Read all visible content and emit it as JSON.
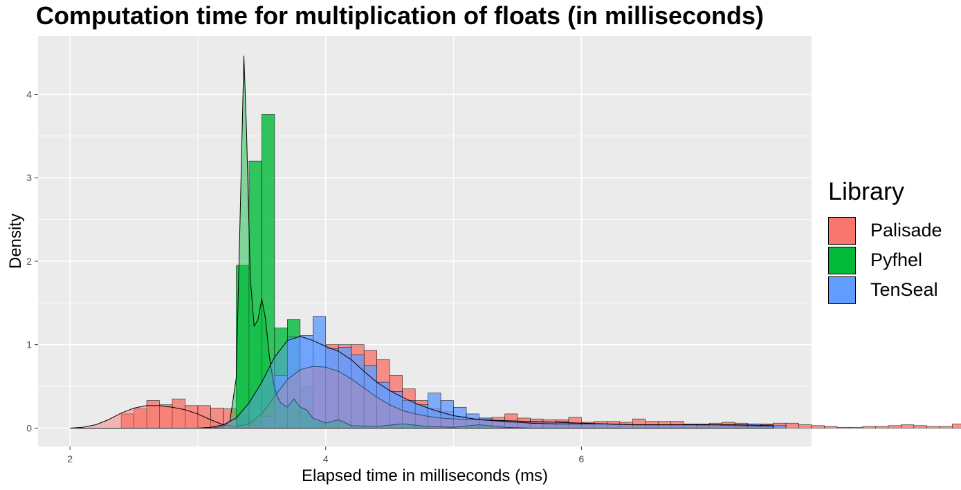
{
  "chart_data": {
    "type": "area",
    "title": "Computation time for multiplication of floats (in milliseconds)",
    "xlabel": "Elapsed time in milliseconds (ms)",
    "ylabel": "Density",
    "xlim": [
      1.75,
      7.8
    ],
    "ylim": [
      -0.22,
      4.7
    ],
    "x_ticks": [
      2,
      4,
      6
    ],
    "y_ticks": [
      0,
      1,
      2,
      3,
      4
    ],
    "grid": true,
    "legend": {
      "title": "Library",
      "position": "right"
    },
    "bin_width": 0.1,
    "series": [
      {
        "name": "Palisade",
        "color": "#F8766D",
        "histogram": {
          "start": 2.0,
          "values": [
            0,
            0,
            0,
            0,
            0.17,
            0.23,
            0.33,
            0.28,
            0.35,
            0.27,
            0.27,
            0.24,
            0.23,
            0.16,
            0.09,
            0,
            0,
            0,
            0,
            0.7,
            1.0,
            1.0,
            1.0,
            0.93,
            0.82,
            0.63,
            0.47,
            0.33,
            0.24,
            0.2,
            0.14,
            0.12,
            0.12,
            0.13,
            0.17,
            0.12,
            0.11,
            0.1,
            0.1,
            0.13,
            0.07,
            0.08,
            0.08,
            0.07,
            0.11,
            0.08,
            0.08,
            0.08,
            0.05,
            0.05,
            0.06,
            0.07,
            0.06,
            0.05,
            0.05,
            0.06,
            0.06,
            0.04,
            0.03,
            0.02,
            0.01,
            0.01,
            0.02,
            0.02,
            0.03,
            0.04,
            0.03,
            0.02,
            0.02,
            0.05,
            0.06,
            0.04,
            0.05,
            0.04,
            0.06,
            0.03,
            0.02,
            0.02,
            0.01,
            0.01,
            0.01,
            0.02,
            0.03,
            0.02,
            0.03,
            0.01,
            0.02,
            0.03,
            0.02,
            0.02,
            0.01,
            0.02,
            0.03,
            0.05,
            0.04,
            0.06,
            0.06,
            0.05,
            0.04,
            0.04,
            0.04,
            0.06,
            0.02,
            0.03,
            0.02,
            0.01,
            0.02,
            0.07,
            0.03,
            0.02,
            0.02,
            0.02,
            0.02,
            0.01,
            0.0,
            0.0
          ]
        },
        "density": {
          "x": [
            2.0,
            2.1,
            2.2,
            2.3,
            2.4,
            2.5,
            2.6,
            2.7,
            2.8,
            2.9,
            3.0,
            3.1,
            3.2,
            3.3,
            3.4,
            3.5,
            3.6,
            3.7,
            3.8,
            3.9,
            4.0,
            4.1,
            4.2,
            4.3,
            4.4,
            4.5,
            4.6,
            4.7,
            4.8,
            4.9,
            5.0,
            5.2,
            5.4,
            5.6,
            5.8,
            6.0,
            6.2,
            6.4,
            6.6,
            6.8,
            7.0,
            7.2,
            7.5
          ],
          "y": [
            0.0,
            0.01,
            0.04,
            0.1,
            0.18,
            0.24,
            0.27,
            0.27,
            0.25,
            0.22,
            0.17,
            0.1,
            0.04,
            0.02,
            0.05,
            0.17,
            0.38,
            0.58,
            0.7,
            0.74,
            0.73,
            0.68,
            0.59,
            0.48,
            0.37,
            0.28,
            0.21,
            0.17,
            0.14,
            0.12,
            0.11,
            0.1,
            0.09,
            0.08,
            0.07,
            0.06,
            0.05,
            0.04,
            0.04,
            0.04,
            0.04,
            0.03,
            0.02
          ]
        }
      },
      {
        "name": "Pyfhel",
        "color": "#00BA38",
        "histogram": {
          "start": 3.0,
          "values": [
            0,
            0,
            0,
            1.95,
            3.2,
            3.76,
            1.2,
            1.3,
            0.5,
            0.07,
            0.02,
            0,
            0,
            0,
            0,
            0,
            0.02,
            0.01,
            0,
            0,
            0,
            0,
            0,
            0,
            0,
            0,
            0,
            0,
            0,
            0,
            0,
            0,
            0,
            0,
            0,
            0,
            0,
            0,
            0,
            0,
            0
          ]
        },
        "density": {
          "x": [
            3.1,
            3.2,
            3.25,
            3.3,
            3.33,
            3.36,
            3.38,
            3.41,
            3.44,
            3.47,
            3.5,
            3.53,
            3.56,
            3.59,
            3.62,
            3.65,
            3.7,
            3.75,
            3.8,
            3.85,
            3.9,
            4.0,
            4.1,
            4.2,
            4.4,
            4.6,
            4.8,
            5.0,
            5.2,
            5.4,
            5.6
          ],
          "y": [
            0.0,
            0.02,
            0.08,
            0.6,
            2.5,
            4.46,
            3.6,
            1.8,
            1.22,
            1.3,
            1.55,
            1.3,
            0.85,
            0.55,
            0.38,
            0.3,
            0.25,
            0.35,
            0.25,
            0.22,
            0.12,
            0.06,
            0.1,
            0.03,
            0.02,
            0.05,
            0.02,
            0.01,
            0.04,
            0.01,
            0.0
          ]
        }
      },
      {
        "name": "TenSeal",
        "color": "#619CFF",
        "histogram": {
          "start": 3.0,
          "values": [
            0,
            0,
            0,
            0,
            0.03,
            0.14,
            0.63,
            1.09,
            1.11,
            1.34,
            0.95,
            0.97,
            0.88,
            0.75,
            0.55,
            0.44,
            0.33,
            0.28,
            0.42,
            0.33,
            0.25,
            0.17,
            0.12,
            0.09,
            0.07,
            0.07,
            0.07,
            0.07,
            0.08,
            0.06,
            0.05,
            0.05,
            0.04,
            0.04,
            0.04,
            0.04,
            0.04,
            0.04,
            0.04,
            0.03,
            0.04,
            0.04,
            0.04,
            0.05,
            0.04,
            0.03
          ]
        },
        "density": {
          "x": [
            3.0,
            3.1,
            3.2,
            3.3,
            3.4,
            3.5,
            3.6,
            3.7,
            3.8,
            3.9,
            4.0,
            4.1,
            4.2,
            4.3,
            4.4,
            4.5,
            4.6,
            4.7,
            4.8,
            4.9,
            5.0,
            5.2,
            5.4,
            5.6,
            5.8,
            6.0,
            6.2,
            6.4,
            6.6,
            6.8,
            7.0,
            7.2,
            7.5
          ],
          "y": [
            0.0,
            0.01,
            0.04,
            0.12,
            0.3,
            0.55,
            0.85,
            1.05,
            1.1,
            1.05,
            0.98,
            0.92,
            0.82,
            0.68,
            0.55,
            0.45,
            0.37,
            0.3,
            0.24,
            0.19,
            0.15,
            0.1,
            0.08,
            0.06,
            0.05,
            0.05,
            0.05,
            0.04,
            0.04,
            0.04,
            0.04,
            0.04,
            0.03
          ]
        }
      }
    ]
  }
}
